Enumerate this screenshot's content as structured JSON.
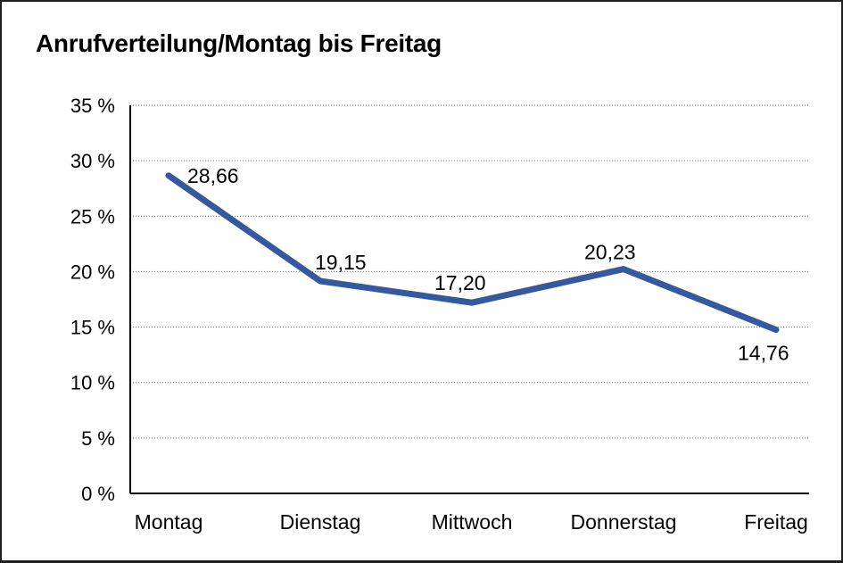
{
  "chart_data": {
    "type": "line",
    "title": "Anrufverteilung/Montag bis Freitag",
    "categories": [
      "Montag",
      "Dienstag",
      "Mittwoch",
      "Donnerstag",
      "Freitag"
    ],
    "values": [
      28.66,
      19.15,
      17.2,
      20.23,
      14.76
    ],
    "point_labels": [
      "28,66",
      "19,15",
      "17,20",
      "20,23",
      "14,76"
    ],
    "series_name": "Anrufverteilung",
    "xlabel": "",
    "ylabel": "",
    "ylim": [
      0,
      35
    ],
    "y_tick_step": 5,
    "y_tick_labels": [
      "0 %",
      "5 %",
      "10 %",
      "15 %",
      "20 %",
      "25 %",
      "30 %",
      "35 %"
    ],
    "grid": "horizontal-dotted",
    "legend": "none",
    "line_color": "#35599E",
    "axis_color": "#000000",
    "gridline_color": "#6b6b6b",
    "background_color": "#ffffff"
  }
}
